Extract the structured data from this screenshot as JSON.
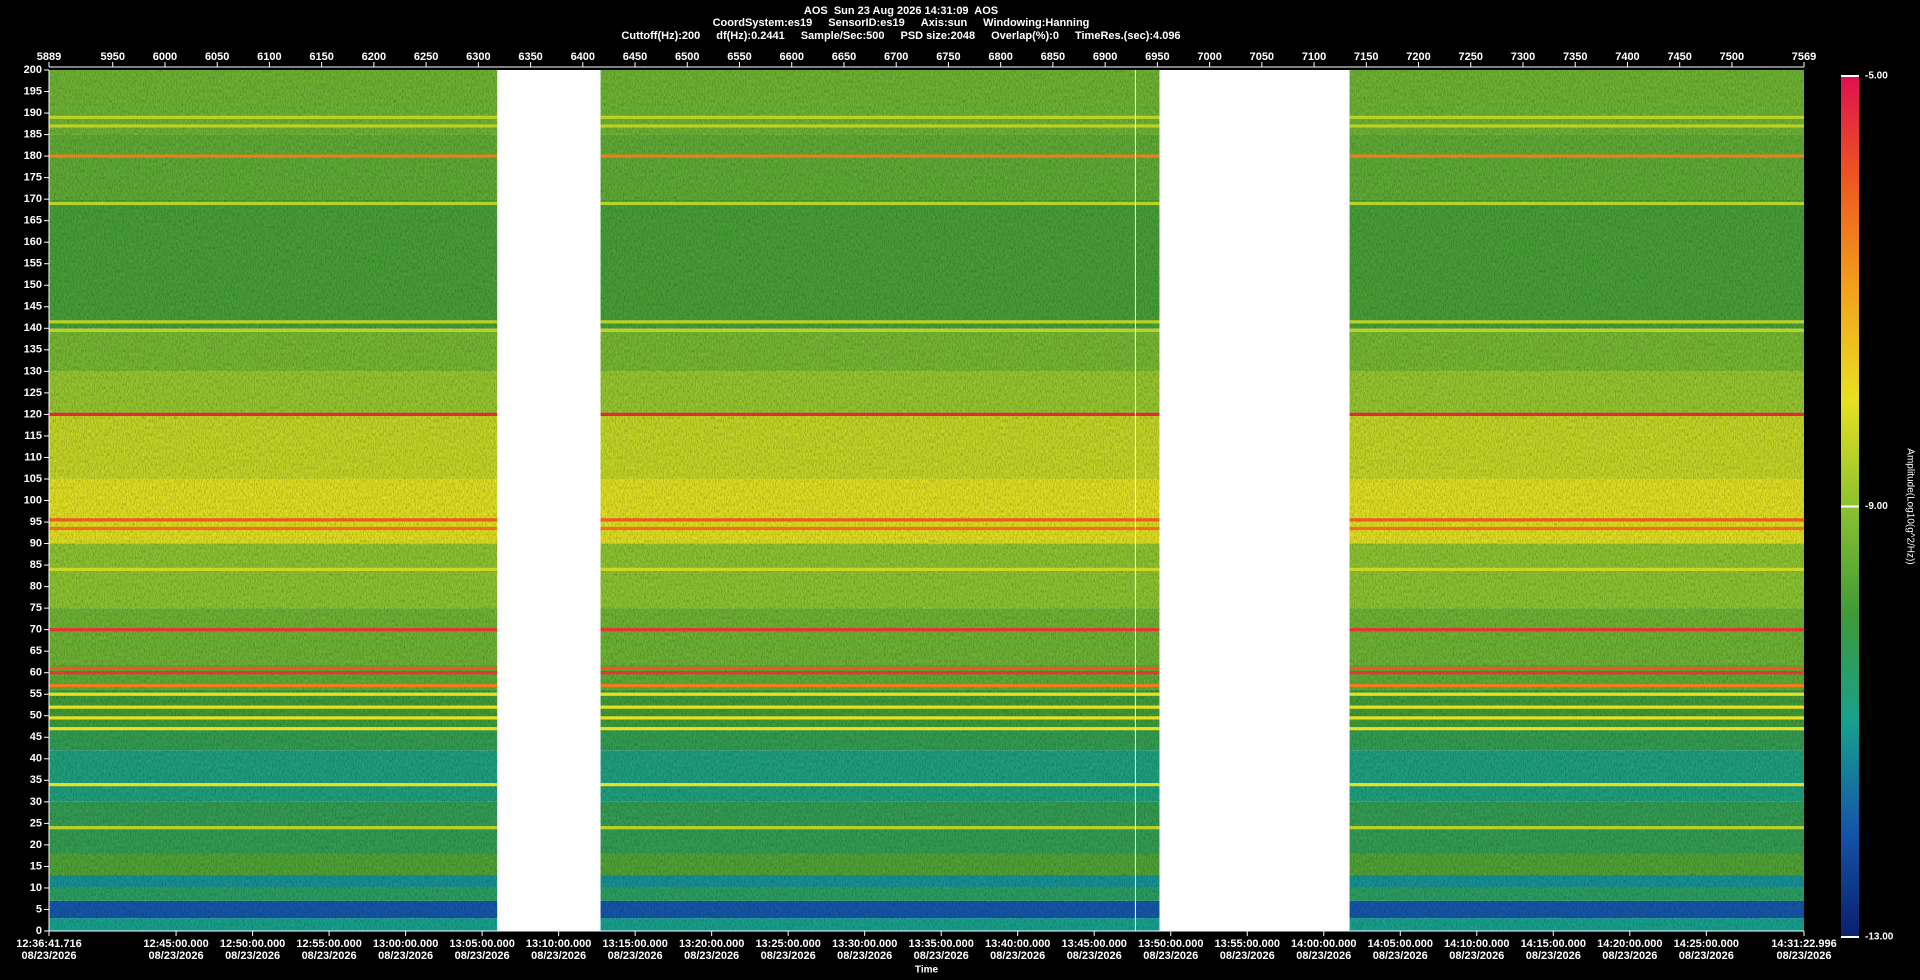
{
  "chart_data": {
    "type": "spectrogram",
    "title": "AOS  Sun 23 Aug 2026 14:31:09  AOS",
    "subtitle": [
      "CoordSystem:es19",
      "SensorID:es19",
      "Axis:sun",
      "Windowing:Hanning"
    ],
    "info": [
      "Cuttoff(Hz):200",
      "df(Hz):0.2441",
      "Sample/Sec:500",
      "PSD size:2048",
      "Overlap(%):0",
      "TimeRes.(sec):4.096"
    ],
    "xlim": [
      5889,
      7569
    ],
    "xticks": [
      5889,
      5950,
      6000,
      6050,
      6100,
      6150,
      6200,
      6250,
      6300,
      6350,
      6400,
      6450,
      6500,
      6550,
      6600,
      6650,
      6700,
      6750,
      6800,
      6850,
      6900,
      6950,
      7000,
      7050,
      7100,
      7150,
      7200,
      7250,
      7300,
      7350,
      7400,
      7450,
      7500,
      7569
    ],
    "ylim": [
      0,
      200
    ],
    "yticks": [
      0,
      5,
      10,
      15,
      20,
      25,
      30,
      35,
      40,
      45,
      50,
      55,
      60,
      65,
      70,
      75,
      80,
      85,
      90,
      95,
      100,
      105,
      110,
      115,
      120,
      125,
      130,
      135,
      140,
      145,
      150,
      155,
      160,
      165,
      170,
      175,
      180,
      185,
      190,
      195,
      200
    ],
    "time_axis": {
      "label": "Time",
      "ticks": [
        {
          "time": "12:36:41.716",
          "date": "08/23/2026"
        },
        {
          "time": "12:45:00.000",
          "date": "08/23/2026"
        },
        {
          "time": "12:50:00.000",
          "date": "08/23/2026"
        },
        {
          "time": "12:55:00.000",
          "date": "08/23/2026"
        },
        {
          "time": "13:00:00.000",
          "date": "08/23/2026"
        },
        {
          "time": "13:05:00.000",
          "date": "08/23/2026"
        },
        {
          "time": "13:10:00.000",
          "date": "08/23/2026"
        },
        {
          "time": "13:15:00.000",
          "date": "08/23/2026"
        },
        {
          "time": "13:20:00.000",
          "date": "08/23/2026"
        },
        {
          "time": "13:25:00.000",
          "date": "08/23/2026"
        },
        {
          "time": "13:30:00.000",
          "date": "08/23/2026"
        },
        {
          "time": "13:35:00.000",
          "date": "08/23/2026"
        },
        {
          "time": "13:40:00.000",
          "date": "08/23/2026"
        },
        {
          "time": "13:45:00.000",
          "date": "08/23/2026"
        },
        {
          "time": "13:50:00.000",
          "date": "08/23/2026"
        },
        {
          "time": "13:55:00.000",
          "date": "08/23/2026"
        },
        {
          "time": "14:00:00.000",
          "date": "08/23/2026"
        },
        {
          "time": "14:05:00.000",
          "date": "08/23/2026"
        },
        {
          "time": "14:10:00.000",
          "date": "08/23/2026"
        },
        {
          "time": "14:15:00.000",
          "date": "08/23/2026"
        },
        {
          "time": "14:20:00.000",
          "date": "08/23/2026"
        },
        {
          "time": "14:25:00.000",
          "date": "08/23/2026"
        },
        {
          "time": "14:31:22.996",
          "date": "08/23/2026"
        }
      ]
    },
    "segments": [
      {
        "start": 5889,
        "end": 6318
      },
      {
        "start": 6417,
        "end": 6952
      },
      {
        "start": 7134,
        "end": 7569
      }
    ],
    "bands": {
      "edges": [
        0,
        3,
        7,
        10,
        13,
        18,
        30,
        42,
        47,
        56,
        62,
        75,
        90,
        105,
        120,
        130,
        140,
        170,
        185,
        200
      ],
      "values": [
        -11,
        -12,
        -10.5,
        -11.2,
        -9.8,
        -10.3,
        -10.8,
        -10.3,
        -10,
        -9.6,
        -9.4,
        -9,
        -8.1,
        -8.4,
        -8.9,
        -9.3,
        -9.9,
        -9.6,
        -9.4
      ]
    },
    "lines": [
      {
        "f": 120,
        "value": -5.3
      },
      {
        "f": 70,
        "value": -5.5
      },
      {
        "f": 60,
        "value": -5.5
      },
      {
        "f": 61,
        "value": -6
      },
      {
        "f": 180,
        "value": -6.5
      },
      {
        "f": 95.5,
        "value": -6
      },
      {
        "f": 93.5,
        "value": -6.3
      },
      {
        "f": 57,
        "value": -6.5
      },
      {
        "f": 55,
        "value": -8
      },
      {
        "f": 52,
        "value": -8
      },
      {
        "f": 49.5,
        "value": -8
      },
      {
        "f": 47,
        "value": -8
      },
      {
        "f": 34,
        "value": -8
      },
      {
        "f": 24,
        "value": -8.5
      },
      {
        "f": 141.5,
        "value": -8.5
      },
      {
        "f": 139.5,
        "value": -8.5
      },
      {
        "f": 169,
        "value": -8.5
      },
      {
        "f": 189,
        "value": -8.5
      },
      {
        "f": 187,
        "value": -8.5
      },
      {
        "f": 84,
        "value": -8.3
      }
    ],
    "cursor": 6929,
    "colorbar": {
      "label": "Amplitude(Log10(g^2/Hz))",
      "clim": [
        -13,
        -5
      ],
      "ticks": [
        {
          "value": -5,
          "label": "-5.00"
        },
        {
          "value": -9,
          "label": "-9.00"
        },
        {
          "value": -13,
          "label": "-13.00"
        }
      ],
      "colors": [
        "#0b1f6e",
        "#1556a8",
        "#17a08e",
        "#3f9a38",
        "#8cc230",
        "#e8e020",
        "#f2a21c",
        "#ee5a1e",
        "#e0104e"
      ]
    }
  }
}
